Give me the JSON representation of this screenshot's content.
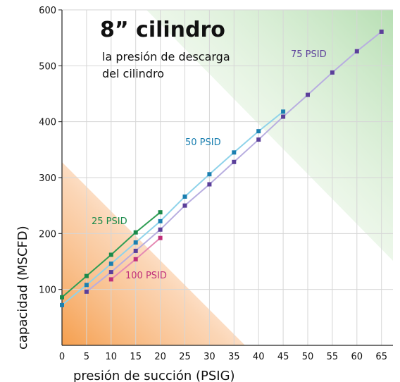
{
  "chart_data": {
    "type": "line",
    "title": "8” cilindro",
    "subtitle_lines": [
      "la presión de descarga",
      "del cilindro"
    ],
    "xlabel": "presión de succión (PSIG)",
    "ylabel": "capacidad (MSCFD)",
    "xlim": [
      0,
      68
    ],
    "ylim": [
      0,
      600
    ],
    "x_ticks": [
      0,
      5,
      10,
      15,
      20,
      25,
      30,
      35,
      40,
      45,
      50,
      55,
      60,
      65
    ],
    "y_ticks": [
      100,
      200,
      300,
      400,
      500,
      600
    ],
    "grid": true,
    "series": [
      {
        "name": "25 PSID",
        "color": "#1a8a4a",
        "line_color": "#2f9e55",
        "x": [
          0,
          5,
          10,
          15,
          20
        ],
        "y": [
          86,
          124,
          162,
          202,
          238
        ]
      },
      {
        "name": "50 PSID",
        "color": "#1a7fb0",
        "line_color": "#8fd3ea",
        "x": [
          0,
          5,
          10,
          15,
          20,
          25,
          30,
          35,
          40,
          45
        ],
        "y": [
          72,
          108,
          146,
          184,
          222,
          266,
          306,
          345,
          383,
          418
        ]
      },
      {
        "name": "75 PSID",
        "color": "#5b3f9a",
        "line_color": "#b8aee0",
        "x": [
          5,
          10,
          15,
          20,
          25,
          30,
          35,
          40,
          45,
          50,
          55,
          60,
          65
        ],
        "y": [
          96,
          131,
          169,
          207,
          250,
          288,
          328,
          368,
          409,
          448,
          488,
          526,
          561
        ]
      },
      {
        "name": "100 PSID",
        "color": "#c0307a",
        "line_color": "#e58ab4",
        "x": [
          10,
          15,
          20
        ],
        "y": [
          118,
          154,
          192
        ]
      }
    ]
  }
}
